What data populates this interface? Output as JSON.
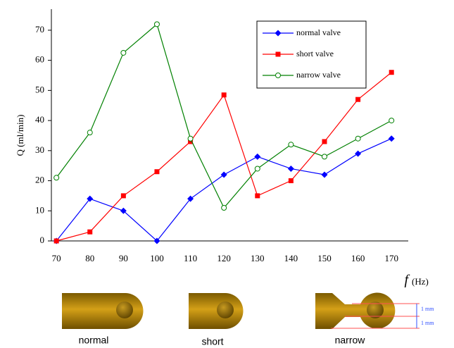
{
  "chart_data": {
    "type": "line",
    "ylabel": "Q (ml/min)",
    "xlabel_symbol": "f",
    "xlabel_unit": "(Hz)",
    "x": [
      70,
      80,
      90,
      100,
      110,
      120,
      130,
      140,
      150,
      160,
      170
    ],
    "xlim": [
      68.5,
      175
    ],
    "xticks": [
      70,
      80,
      90,
      100,
      110,
      120,
      130,
      140,
      150,
      160,
      170
    ],
    "ylim": [
      0,
      77
    ],
    "yticks": [
      0,
      10,
      20,
      30,
      40,
      50,
      60,
      70
    ],
    "grid": false,
    "legend": "top-right",
    "series": [
      {
        "name": "normal valve",
        "color": "#0000ff",
        "marker": "diamond",
        "values": [
          0,
          14,
          10,
          0,
          14,
          22,
          28,
          24,
          22,
          29,
          34
        ]
      },
      {
        "name": "short valve",
        "color": "#ff0000",
        "marker": "square",
        "values": [
          0,
          3,
          15,
          23,
          33,
          48.5,
          15,
          20,
          33,
          47,
          56
        ]
      },
      {
        "name": "narrow valve",
        "color": "#008000",
        "marker": "open-circle",
        "values": [
          21,
          36,
          62.5,
          72,
          34,
          11,
          24,
          32,
          28,
          34,
          40
        ]
      }
    ]
  },
  "illustrations": {
    "captions": [
      "normal",
      "short",
      "narrow"
    ],
    "dimension_labels": [
      "1 mm",
      "1 mm"
    ]
  }
}
